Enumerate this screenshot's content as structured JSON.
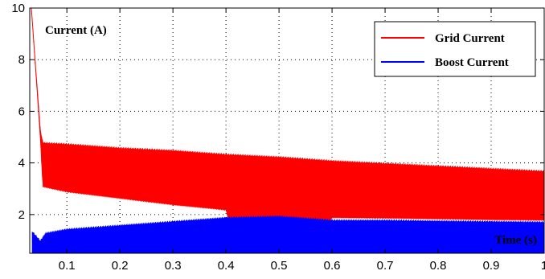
{
  "chart_data": {
    "type": "line",
    "title": "",
    "ylabel": "Current (A)",
    "xlabel": "Time (s)",
    "xlim": [
      0.03,
      1.0
    ],
    "ylim": [
      0.5,
      10
    ],
    "xticks": [
      0.1,
      0.2,
      0.3,
      0.4,
      0.5,
      0.6,
      0.7,
      0.8,
      0.9,
      1
    ],
    "xtick_labels": [
      "0.1",
      "0.2",
      "0.3",
      "0.4",
      "0.5",
      "0.6",
      "0.7",
      "0.8",
      "0.9",
      "1"
    ],
    "yticks": [
      2,
      4,
      6,
      8,
      10
    ],
    "ytick_labels": [
      "2",
      "4",
      "6",
      "8",
      "10"
    ],
    "grid": "dotted",
    "legend_position": "top-right",
    "series": [
      {
        "name": "Grid Current",
        "color": "#ff0000",
        "style": "oscillating band",
        "upper": [
          [
            0.033,
            10.0
          ],
          [
            0.04,
            8.0
          ],
          [
            0.05,
            5.2
          ],
          [
            0.055,
            4.75
          ],
          [
            0.1,
            4.7
          ],
          [
            0.2,
            4.55
          ],
          [
            0.3,
            4.45
          ],
          [
            0.4,
            4.3
          ],
          [
            0.5,
            4.2
          ],
          [
            0.6,
            4.05
          ],
          [
            0.7,
            3.95
          ],
          [
            0.8,
            3.85
          ],
          [
            0.9,
            3.75
          ],
          [
            1.0,
            3.65
          ]
        ],
        "lower": [
          [
            0.033,
            10.0
          ],
          [
            0.04,
            8.0
          ],
          [
            0.05,
            5.0
          ],
          [
            0.055,
            3.1
          ],
          [
            0.1,
            2.9
          ],
          [
            0.2,
            2.65
          ],
          [
            0.3,
            2.4
          ],
          [
            0.4,
            2.2
          ],
          [
            0.405,
            1.85
          ],
          [
            0.5,
            1.75
          ],
          [
            0.595,
            1.7
          ],
          [
            0.6,
            1.9
          ],
          [
            0.7,
            1.88
          ],
          [
            0.8,
            1.85
          ],
          [
            0.9,
            1.82
          ],
          [
            1.0,
            1.8
          ]
        ]
      },
      {
        "name": "Boost Current",
        "color": "#0000ff",
        "style": "oscillating band",
        "upper": [
          [
            0.035,
            1.3
          ],
          [
            0.05,
            0.95
          ],
          [
            0.06,
            1.25
          ],
          [
            0.1,
            1.4
          ],
          [
            0.2,
            1.55
          ],
          [
            0.3,
            1.7
          ],
          [
            0.4,
            1.85
          ],
          [
            0.5,
            1.9
          ],
          [
            0.6,
            1.75
          ],
          [
            0.7,
            1.75
          ],
          [
            0.8,
            1.72
          ],
          [
            0.9,
            1.7
          ],
          [
            1.0,
            1.68
          ]
        ],
        "lower": [
          [
            0.035,
            0.5
          ],
          [
            1.0,
            0.5
          ]
        ]
      }
    ]
  }
}
